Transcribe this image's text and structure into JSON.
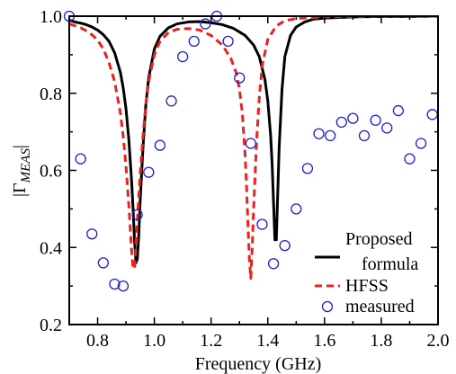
{
  "chart_data": {
    "type": "line",
    "xlabel": "Frequency (GHz)",
    "ylabel_main": "|Γ",
    "ylabel_sub": "MEAS",
    "ylabel_end": "|",
    "xlim": [
      0.7,
      2.0
    ],
    "ylim": [
      0.2,
      1.0
    ],
    "x_ticks": [
      "0.8",
      "1.0",
      "1.2",
      "1.4",
      "1.6",
      "1.8",
      "2.0"
    ],
    "y_ticks": [
      "0.2",
      "0.4",
      "0.6",
      "0.8",
      "1.0"
    ],
    "x_tick_values": [
      0.8,
      1.0,
      1.2,
      1.4,
      1.6,
      1.8,
      2.0
    ],
    "y_tick_values": [
      0.2,
      0.4,
      0.6,
      0.8,
      1.0
    ],
    "grid": false,
    "legend_position": "bottom-right",
    "legend": [
      {
        "line1": "Proposed",
        "line2": "formula",
        "style": "solid",
        "color": "#000000"
      },
      {
        "line1": "HFSS",
        "line2": "",
        "style": "dashed",
        "color": "#e8221f"
      },
      {
        "line1": "measured",
        "line2": "",
        "style": "marker",
        "color": "#1f1fd6"
      }
    ],
    "series": [
      {
        "style": "solid",
        "color": "#000000",
        "x": [
          0.7,
          0.72,
          0.74,
          0.76,
          0.78,
          0.8,
          0.82,
          0.84,
          0.86,
          0.88,
          0.89,
          0.9,
          0.91,
          0.92,
          0.925,
          0.93,
          0.935,
          0.94,
          0.945,
          0.95,
          0.96,
          0.97,
          0.98,
          1.0,
          1.02,
          1.05,
          1.08,
          1.12,
          1.16,
          1.2,
          1.24,
          1.28,
          1.32,
          1.35,
          1.37,
          1.39,
          1.4,
          1.41,
          1.415,
          1.42,
          1.425,
          1.43,
          1.435,
          1.44,
          1.45,
          1.46,
          1.48,
          1.5,
          1.53,
          1.56,
          1.6,
          1.7,
          1.8,
          1.9,
          2.0
        ],
        "y": [
          0.99,
          0.985,
          0.982,
          0.978,
          0.972,
          0.964,
          0.952,
          0.935,
          0.905,
          0.855,
          0.815,
          0.76,
          0.68,
          0.57,
          0.5,
          0.42,
          0.36,
          0.37,
          0.43,
          0.52,
          0.66,
          0.77,
          0.84,
          0.915,
          0.948,
          0.97,
          0.98,
          0.985,
          0.986,
          0.983,
          0.978,
          0.968,
          0.95,
          0.925,
          0.895,
          0.835,
          0.78,
          0.69,
          0.62,
          0.52,
          0.42,
          0.42,
          0.54,
          0.66,
          0.81,
          0.895,
          0.95,
          0.972,
          0.985,
          0.992,
          0.995,
          0.998,
          0.999,
          0.999,
          1.0
        ]
      },
      {
        "style": "dashed",
        "color": "#e8221f",
        "x": [
          0.7,
          0.72,
          0.74,
          0.76,
          0.78,
          0.8,
          0.82,
          0.84,
          0.86,
          0.88,
          0.89,
          0.9,
          0.91,
          0.915,
          0.92,
          0.925,
          0.93,
          0.935,
          0.94,
          0.95,
          0.96,
          0.97,
          0.98,
          1.0,
          1.02,
          1.05,
          1.08,
          1.12,
          1.16,
          1.2,
          1.24,
          1.27,
          1.29,
          1.3,
          1.31,
          1.32,
          1.325,
          1.33,
          1.335,
          1.34,
          1.345,
          1.35,
          1.36,
          1.37,
          1.38,
          1.4,
          1.43,
          1.46,
          1.5,
          1.6,
          1.8,
          2.0
        ],
        "y": [
          0.98,
          0.975,
          0.97,
          0.962,
          0.952,
          0.938,
          0.915,
          0.88,
          0.83,
          0.75,
          0.69,
          0.61,
          0.51,
          0.45,
          0.39,
          0.345,
          0.345,
          0.4,
          0.47,
          0.59,
          0.69,
          0.77,
          0.83,
          0.9,
          0.935,
          0.958,
          0.966,
          0.968,
          0.964,
          0.95,
          0.925,
          0.89,
          0.85,
          0.81,
          0.75,
          0.64,
          0.56,
          0.46,
          0.37,
          0.32,
          0.4,
          0.5,
          0.67,
          0.79,
          0.87,
          0.94,
          0.975,
          0.988,
          0.994,
          0.998,
          1.0,
          1.0
        ]
      }
    ],
    "measured": {
      "x": [
        0.7,
        0.74,
        0.78,
        0.82,
        0.86,
        0.89,
        0.94,
        0.98,
        1.02,
        1.06,
        1.1,
        1.14,
        1.18,
        1.22,
        1.26,
        1.3,
        1.34,
        1.38,
        1.42,
        1.46,
        1.5,
        1.54,
        1.58,
        1.62,
        1.66,
        1.7,
        1.74,
        1.78,
        1.82,
        1.86,
        1.9,
        1.94,
        1.98
      ],
      "y": [
        1.0,
        0.63,
        0.435,
        0.36,
        0.305,
        0.3,
        0.485,
        0.595,
        0.665,
        0.78,
        0.895,
        0.935,
        0.98,
        1.0,
        0.935,
        0.84,
        0.67,
        0.46,
        0.358,
        0.405,
        0.5,
        0.605,
        0.695,
        0.69,
        0.725,
        0.735,
        0.69,
        0.73,
        0.71,
        0.755,
        0.63,
        0.67,
        0.745
      ]
    }
  }
}
